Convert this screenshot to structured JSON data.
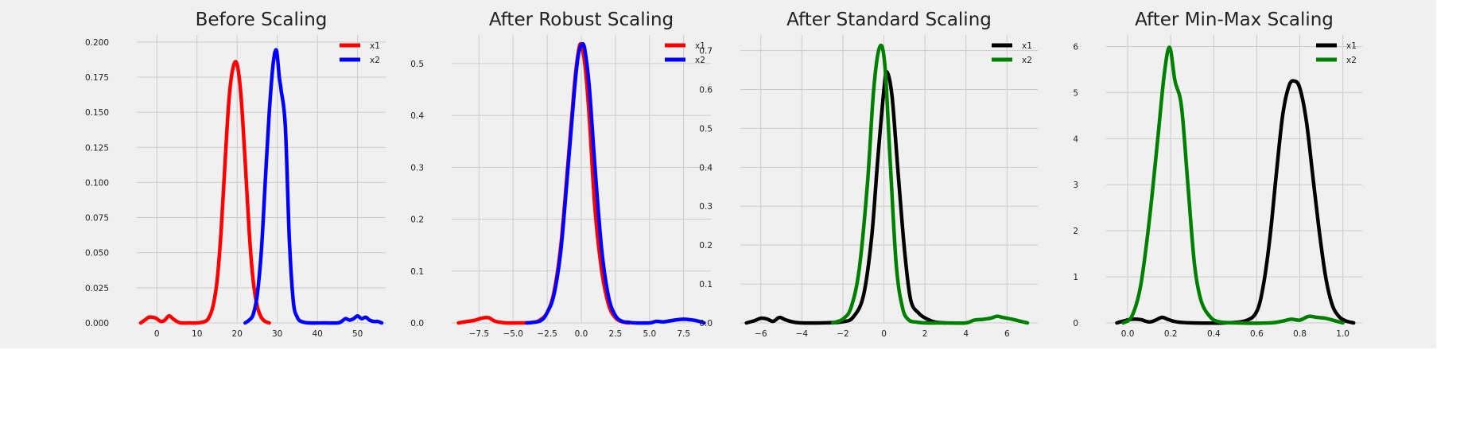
{
  "chart_data": [
    {
      "type": "line",
      "title": "Before Scaling",
      "xlim": [
        -5,
        57
      ],
      "ylim": [
        0,
        0.205
      ],
      "xticks": [
        0,
        10,
        20,
        30,
        40,
        50
      ],
      "yticks": [
        0.0,
        0.025,
        0.05,
        0.075,
        0.1,
        0.125,
        0.15,
        0.175,
        0.2
      ],
      "xtick_labels": [
        "0",
        "10",
        "20",
        "30",
        "40",
        "50"
      ],
      "ytick_labels": [
        "0.000",
        "0.025",
        "0.050",
        "0.075",
        "0.100",
        "0.125",
        "0.150",
        "0.175",
        "0.200"
      ],
      "grid": true,
      "legend_position": "top-right",
      "series": [
        {
          "name": "x1",
          "color": "#ff0000",
          "x": [
            -4,
            -3,
            -2,
            -1,
            0,
            1,
            2,
            3,
            4,
            5,
            6,
            8,
            10,
            12,
            13,
            14,
            15,
            16,
            17,
            18,
            19,
            20,
            21,
            22,
            23,
            24,
            25,
            26,
            27,
            28
          ],
          "y": [
            0.0,
            0.002,
            0.004,
            0.004,
            0.003,
            0.001,
            0.002,
            0.005,
            0.003,
            0.001,
            0.0,
            0.0,
            0.0,
            0.001,
            0.004,
            0.012,
            0.03,
            0.065,
            0.115,
            0.16,
            0.182,
            0.184,
            0.16,
            0.115,
            0.065,
            0.03,
            0.012,
            0.004,
            0.001,
            0.0
          ]
        },
        {
          "name": "x2",
          "color": "#0000ff",
          "x": [
            22,
            23,
            24,
            25,
            26,
            27,
            28,
            29,
            29.8,
            30.5,
            31,
            32,
            33,
            34,
            35,
            36,
            38,
            42,
            45,
            46,
            47,
            48,
            49,
            50,
            51,
            52,
            53,
            54,
            55,
            56
          ],
          "y": [
            0.0,
            0.002,
            0.006,
            0.02,
            0.05,
            0.1,
            0.15,
            0.185,
            0.194,
            0.175,
            0.165,
            0.14,
            0.06,
            0.015,
            0.004,
            0.001,
            0.0,
            0.0,
            0.0,
            0.001,
            0.003,
            0.002,
            0.003,
            0.005,
            0.003,
            0.004,
            0.002,
            0.001,
            0.001,
            0.0
          ]
        }
      ]
    },
    {
      "type": "line",
      "title": "After Robust Scaling",
      "xlim": [
        -9.5,
        9.5
      ],
      "ylim": [
        0,
        0.555
      ],
      "xticks": [
        -7.5,
        -5.0,
        -2.5,
        0.0,
        2.5,
        5.0,
        7.5
      ],
      "yticks": [
        0.0,
        0.1,
        0.2,
        0.3,
        0.4,
        0.5
      ],
      "xtick_labels": [
        "−7.5",
        "−5.0",
        "−2.5",
        "0.0",
        "2.5",
        "5.0",
        "7.5"
      ],
      "ytick_labels": [
        "0.0",
        "0.1",
        "0.2",
        "0.3",
        "0.4",
        "0.5"
      ],
      "grid": true,
      "legend_position": "top-right",
      "series": [
        {
          "name": "x1",
          "color": "#ff0000",
          "x": [
            -9,
            -8.3,
            -7.8,
            -7.3,
            -6.8,
            -6.3,
            -5.5,
            -4.5,
            -3.5,
            -3,
            -2.5,
            -2,
            -1.5,
            -1,
            -0.5,
            -0.2,
            0,
            0.3,
            0.6,
            1,
            1.5,
            2,
            2.5,
            3,
            3.5
          ],
          "y": [
            0.0,
            0.003,
            0.005,
            0.009,
            0.01,
            0.003,
            0.0,
            0.0,
            0.001,
            0.006,
            0.02,
            0.06,
            0.15,
            0.3,
            0.46,
            0.525,
            0.535,
            0.49,
            0.39,
            0.22,
            0.1,
            0.035,
            0.01,
            0.002,
            0.0
          ]
        },
        {
          "name": "x2",
          "color": "#0000ff",
          "x": [
            -4,
            -3,
            -2.5,
            -2,
            -1.5,
            -1,
            -0.5,
            -0.2,
            0.1,
            0.3,
            0.6,
            1,
            1.5,
            2,
            2.5,
            3,
            3.5,
            4,
            5,
            5.5,
            6,
            6.5,
            7,
            7.5,
            8,
            8.5,
            9
          ],
          "y": [
            0.0,
            0.004,
            0.02,
            0.055,
            0.14,
            0.29,
            0.45,
            0.52,
            0.538,
            0.52,
            0.45,
            0.3,
            0.14,
            0.05,
            0.014,
            0.003,
            0.001,
            0.0,
            0.0,
            0.003,
            0.002,
            0.004,
            0.006,
            0.007,
            0.006,
            0.004,
            0.0
          ]
        }
      ]
    },
    {
      "type": "line",
      "title": "After Standard Scaling",
      "xlim": [
        -7,
        7.5
      ],
      "ylim": [
        0,
        0.74
      ],
      "xticks": [
        -6,
        -4,
        -2,
        0,
        2,
        4,
        6
      ],
      "yticks": [
        0.0,
        0.1,
        0.2,
        0.3,
        0.4,
        0.5,
        0.6,
        0.7
      ],
      "xtick_labels": [
        "−6",
        "−4",
        "−2",
        "0",
        "2",
        "4",
        "6"
      ],
      "ytick_labels": [
        "0.0",
        "0.1",
        "0.2",
        "0.3",
        "0.4",
        "0.5",
        "0.6",
        "0.7"
      ],
      "grid": true,
      "legend_position": "top-right",
      "series": [
        {
          "name": "x1",
          "color": "#000000",
          "x": [
            -6.7,
            -6.3,
            -6,
            -5.7,
            -5.4,
            -5.1,
            -4.8,
            -4.4,
            -4,
            -3,
            -2,
            -1.5,
            -1,
            -0.6,
            -0.3,
            0,
            0.15,
            0.4,
            0.7,
            1,
            1.3,
            1.7,
            2.1,
            2.5,
            3
          ],
          "y": [
            0.0,
            0.006,
            0.012,
            0.01,
            0.004,
            0.014,
            0.008,
            0.002,
            0.0,
            0.0,
            0.003,
            0.015,
            0.07,
            0.22,
            0.42,
            0.6,
            0.645,
            0.58,
            0.38,
            0.19,
            0.06,
            0.025,
            0.01,
            0.002,
            0.0
          ]
        },
        {
          "name": "x2",
          "color": "#008000",
          "x": [
            -2.5,
            -2,
            -1.6,
            -1.2,
            -0.8,
            -0.5,
            -0.2,
            0.05,
            0.3,
            0.6,
            0.9,
            1.2,
            1.6,
            2,
            3,
            4,
            4.4,
            4.8,
            5.2,
            5.5,
            5.8,
            6.2,
            6.6,
            7
          ],
          "y": [
            0.0,
            0.01,
            0.04,
            0.14,
            0.36,
            0.6,
            0.71,
            0.66,
            0.42,
            0.15,
            0.04,
            0.008,
            0.002,
            0.0,
            0.0,
            0.0,
            0.007,
            0.009,
            0.012,
            0.017,
            0.014,
            0.01,
            0.005,
            0.0
          ]
        }
      ]
    },
    {
      "type": "line",
      "title": "After Min-Max Scaling",
      "xlim": [
        -0.1,
        1.09
      ],
      "ylim": [
        0,
        6.25
      ],
      "xticks": [
        0.0,
        0.2,
        0.4,
        0.6,
        0.8,
        1.0
      ],
      "yticks": [
        0,
        1,
        2,
        3,
        4,
        5,
        6
      ],
      "xtick_labels": [
        "0.0",
        "0.2",
        "0.4",
        "0.6",
        "0.8",
        "1.0"
      ],
      "ytick_labels": [
        "0",
        "1",
        "2",
        "3",
        "4",
        "5",
        "6"
      ],
      "grid": true,
      "legend_position": "top-right",
      "series": [
        {
          "name": "x1",
          "color": "#000000",
          "x": [
            -0.05,
            -0.02,
            0.02,
            0.06,
            0.1,
            0.13,
            0.16,
            0.19,
            0.23,
            0.3,
            0.45,
            0.55,
            0.6,
            0.63,
            0.66,
            0.69,
            0.72,
            0.75,
            0.775,
            0.8,
            0.83,
            0.86,
            0.89,
            0.92,
            0.95,
            0.98,
            1.01,
            1.05
          ],
          "y": [
            0.0,
            0.04,
            0.08,
            0.07,
            0.02,
            0.06,
            0.12,
            0.07,
            0.02,
            0.0,
            0.0,
            0.05,
            0.25,
            0.8,
            1.8,
            3.2,
            4.5,
            5.15,
            5.25,
            5.1,
            4.4,
            3.2,
            2.0,
            1.0,
            0.4,
            0.15,
            0.05,
            0.0
          ]
        },
        {
          "name": "x2",
          "color": "#008000",
          "x": [
            -0.02,
            0.02,
            0.06,
            0.1,
            0.14,
            0.17,
            0.195,
            0.22,
            0.25,
            0.28,
            0.31,
            0.34,
            0.38,
            0.42,
            0.5,
            0.66,
            0.72,
            0.76,
            0.8,
            0.84,
            0.88,
            0.92,
            0.96,
            1.0
          ],
          "y": [
            0.0,
            0.15,
            0.8,
            2.2,
            4.0,
            5.4,
            5.98,
            5.25,
            4.7,
            3.0,
            1.3,
            0.5,
            0.15,
            0.03,
            0.0,
            0.0,
            0.04,
            0.08,
            0.06,
            0.14,
            0.12,
            0.1,
            0.05,
            0.0
          ]
        }
      ]
    }
  ]
}
